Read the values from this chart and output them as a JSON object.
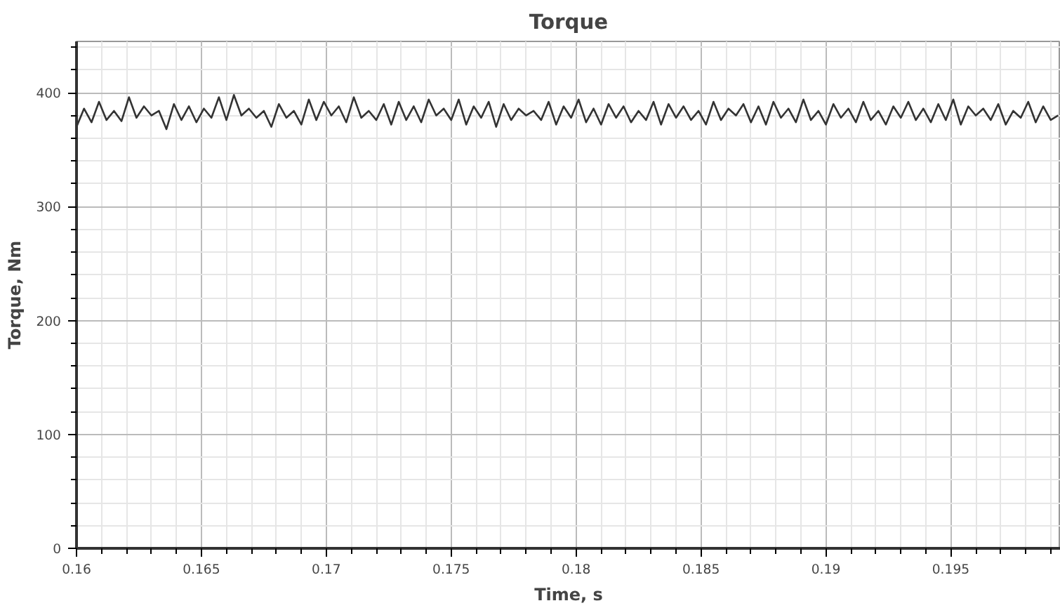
{
  "chart_data": {
    "type": "line",
    "title": "Torque",
    "xlabel": "Time, s",
    "ylabel": "Torque, Nm",
    "xlim": [
      0.16,
      0.1994
    ],
    "ylim": [
      0,
      445
    ],
    "xticks": [
      0.16,
      0.165,
      0.17,
      0.175,
      0.18,
      0.185,
      0.19,
      0.195
    ],
    "yticks": [
      0,
      100,
      200,
      300,
      400
    ],
    "grid": true,
    "marker": "none",
    "line_style": "solid",
    "series": [
      {
        "color": "#333333",
        "x": [
          0.16,
          0.1603,
          0.1606,
          0.1609,
          0.1612,
          0.1615,
          0.1618,
          0.1621,
          0.1624,
          0.1627,
          0.163,
          0.1633,
          0.1636,
          0.1639,
          0.1642,
          0.1645,
          0.1648,
          0.1651,
          0.1654,
          0.1657,
          0.166,
          0.1663,
          0.1666,
          0.1669,
          0.1672,
          0.1675,
          0.1678,
          0.1681,
          0.1684,
          0.1687,
          0.169,
          0.1693,
          0.1696,
          0.1699,
          0.1702,
          0.1705,
          0.1708,
          0.1711,
          0.1714,
          0.1717,
          0.172,
          0.1723,
          0.1726,
          0.1729,
          0.1732,
          0.1735,
          0.1738,
          0.1741,
          0.1744,
          0.1747,
          0.175,
          0.1753,
          0.1756,
          0.1759,
          0.1762,
          0.1765,
          0.1768,
          0.1771,
          0.1774,
          0.1777,
          0.178,
          0.1783,
          0.1786,
          0.1789,
          0.1792,
          0.1795,
          0.1798,
          0.1801,
          0.1804,
          0.1807,
          0.181,
          0.1813,
          0.1816,
          0.1819,
          0.1822,
          0.1825,
          0.1828,
          0.1831,
          0.1834,
          0.1837,
          0.184,
          0.1843,
          0.1846,
          0.1849,
          0.1852,
          0.1855,
          0.1858,
          0.1861,
          0.1864,
          0.1867,
          0.187,
          0.1873,
          0.1876,
          0.1879,
          0.1882,
          0.1885,
          0.1888,
          0.1891,
          0.1894,
          0.1897,
          0.19,
          0.1903,
          0.1906,
          0.1909,
          0.1912,
          0.1915,
          0.1918,
          0.1921,
          0.1924,
          0.1927,
          0.193,
          0.1933,
          0.1936,
          0.1939,
          0.1942,
          0.1945,
          0.1948,
          0.1951,
          0.1954,
          0.1957,
          0.196,
          0.1963,
          0.1966,
          0.1969,
          0.1972,
          0.1975,
          0.1978,
          0.1981,
          0.1984,
          0.1987,
          0.199,
          0.1993
        ],
        "values": [
          370,
          386,
          374,
          392,
          376,
          384,
          375,
          396,
          378,
          388,
          380,
          384,
          368,
          390,
          376,
          388,
          374,
          386,
          378,
          396,
          376,
          398,
          380,
          386,
          378,
          384,
          370,
          390,
          378,
          384,
          372,
          394,
          376,
          392,
          380,
          388,
          374,
          396,
          378,
          384,
          376,
          390,
          372,
          392,
          376,
          388,
          374,
          394,
          380,
          386,
          376,
          394,
          372,
          388,
          378,
          392,
          370,
          390,
          376,
          386,
          380,
          384,
          376,
          392,
          372,
          388,
          378,
          394,
          374,
          386,
          372,
          390,
          378,
          388,
          374,
          384,
          376,
          392,
          372,
          390,
          378,
          388,
          376,
          384,
          372,
          392,
          376,
          386,
          380,
          390,
          374,
          388,
          372,
          392,
          378,
          386,
          374,
          394,
          376,
          384,
          372,
          390,
          378,
          386,
          374,
          392,
          376,
          384,
          372,
          388,
          378,
          392,
          376,
          386,
          374,
          390,
          376,
          394,
          372,
          388,
          380,
          386,
          376,
          390,
          372,
          384,
          378,
          392,
          374,
          388,
          376,
          380
        ]
      }
    ]
  }
}
